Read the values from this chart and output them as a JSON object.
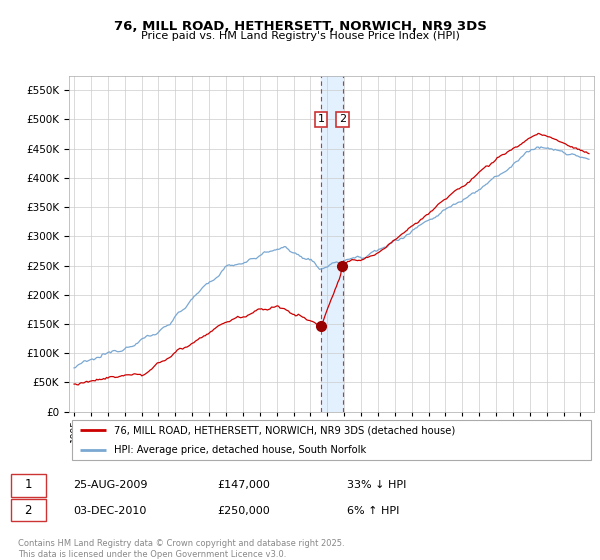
{
  "title": "76, MILL ROAD, HETHERSETT, NORWICH, NR9 3DS",
  "subtitle": "Price paid vs. HM Land Registry's House Price Index (HPI)",
  "hpi_label": "HPI: Average price, detached house, South Norfolk",
  "property_label": "76, MILL ROAD, HETHERSETT, NORWICH, NR9 3DS (detached house)",
  "sale1_date": "25-AUG-2009",
  "sale1_price": 147000,
  "sale1_hpi_diff": "33% ↓ HPI",
  "sale2_date": "03-DEC-2010",
  "sale2_price": 250000,
  "sale2_hpi_diff": "6% ↑ HPI",
  "footer": "Contains HM Land Registry data © Crown copyright and database right 2025.\nThis data is licensed under the Open Government Licence v3.0.",
  "red_color": "#cc0000",
  "blue_color": "#7aa8d2",
  "vline_color": "#cc3333",
  "span_color": "#ddeeff",
  "marker_color": "#990000",
  "ylim_max": 575000,
  "ylim_min": 0,
  "sale1_year": 2009.625,
  "sale2_year": 2010.917
}
